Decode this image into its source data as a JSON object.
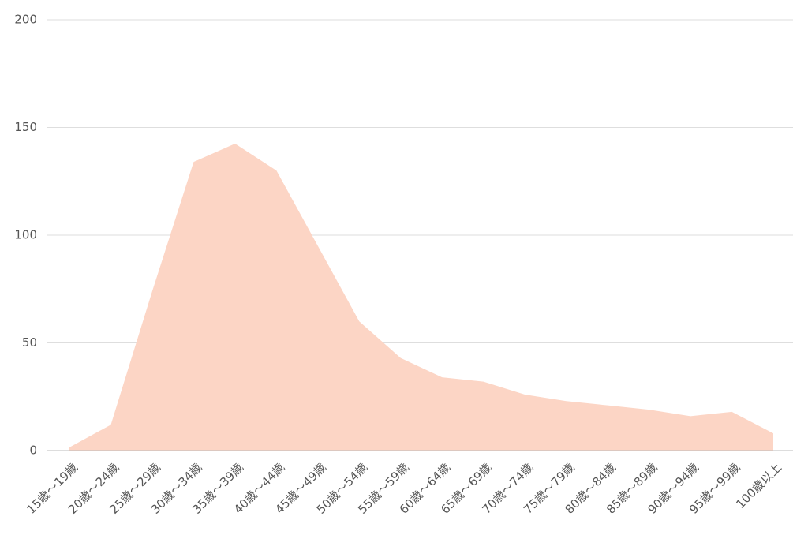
{
  "chart_data": {
    "type": "area",
    "categories": [
      "15歳～19歳",
      "20歳～24歳",
      "25歳～29歳",
      "30歳～34歳",
      "35歳～39歳",
      "40歳～44歳",
      "45歳～49歳",
      "50歳～54歳",
      "55歳～59歳",
      "60歳～64歳",
      "65歳～69歳",
      "70歳～74歳",
      "75歳～79歳",
      "80歳～84歳",
      "85歳～89歳",
      "90歳～94歳",
      "95歳～99歳",
      "100歳以上"
    ],
    "values": [
      1.5,
      12,
      74,
      134,
      142.5,
      130,
      95,
      60,
      43,
      34,
      32,
      26,
      23,
      21,
      19,
      16,
      18,
      8
    ],
    "color": "#fcd5c5",
    "ylim": [
      0,
      200
    ],
    "yticks": [
      0,
      50,
      100,
      150,
      200
    ],
    "grid": true
  }
}
